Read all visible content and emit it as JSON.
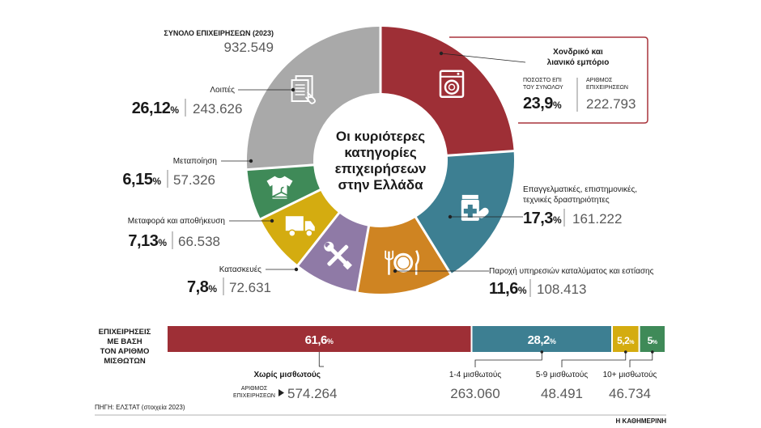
{
  "colors": {
    "background": "#ffffff",
    "text_dark": "#1a1a1a",
    "text_gray": "#5a5a5a",
    "divider": "#8a8a8a",
    "highlight_box": "#a8343b"
  },
  "chart_data": [
    {
      "type": "pie",
      "style": "donut",
      "title": "Οι κυριότερες κατηγορίες επιχειρήσεων στην Ελλάδα",
      "title_lines": [
        "Οι κυριότερες",
        "κατηγορίες",
        "επιχειρήσεων",
        "στην Ελλάδα"
      ],
      "total_label": "ΣΥΝΟΛΟ ΕΠΙΧΕΙΡΗΣΕΩΝ (2023)",
      "total_value": "932.549",
      "highlight_box": {
        "share_header": [
          "ΠΟΣΟΣΤΟ ΕΠΙ",
          "ΤΟΥ ΣΥΝΟΛΟΥ"
        ],
        "count_header": [
          "ΑΡΙΘΜΟΣ",
          "ΕΠΙΧΕΙΡΗΣΕΩΝ"
        ]
      },
      "slices": [
        {
          "label": "Χονδρικό και λιανικό εμπόριο",
          "label_lines": [
            "Χονδρικό και",
            "λιανικό εμπόριο"
          ],
          "percent": 23.9,
          "percent_text": "23,9",
          "count": 222793,
          "count_text": "222.793",
          "color": "#9e2f36",
          "icon": "washing-machine-icon"
        },
        {
          "label": "Επαγγελματικές, επιστημονικές, τεχνικές δραστηριότητες",
          "label_lines": [
            "Επαγγελματικές, επιστημονικές,",
            "τεχνικές δραστηριότητες"
          ],
          "percent": 17.3,
          "percent_text": "17,3",
          "count": 161222,
          "count_text": "161.222",
          "color": "#3d7f92",
          "icon": "medicine-icon"
        },
        {
          "label": "Παροχή υπηρεσιών καταλύματος και εστίασης",
          "label_lines": [
            "Παροχή υπηρεσιών καταλύματος και εστίασης"
          ],
          "percent": 11.6,
          "percent_text": "11,6",
          "count": 108413,
          "count_text": "108.413",
          "color": "#cf8422",
          "icon": "cutlery-plate-icon"
        },
        {
          "label": "Κατασκευές",
          "label_lines": [
            "Κατασκευές"
          ],
          "percent": 7.8,
          "percent_text": "7,8",
          "count": 72631,
          "count_text": "72.631",
          "color": "#8f7aa6",
          "icon": "tools-icon"
        },
        {
          "label": "Μεταφορά και αποθήκευση",
          "label_lines": [
            "Μεταφορά και αποθήκευση"
          ],
          "percent": 7.13,
          "percent_text": "7,13",
          "count": 66538,
          "count_text": "66.538",
          "color": "#d4ac10",
          "icon": "truck-icon"
        },
        {
          "label": "Μεταποίηση",
          "label_lines": [
            "Μεταποίηση"
          ],
          "percent": 6.15,
          "percent_text": "6,15",
          "count": 57326,
          "count_text": "57.326",
          "color": "#3f8a58",
          "icon": "shirt-hanger-icon"
        },
        {
          "label": "Λοιπές",
          "label_lines": [
            "Λοιπές"
          ],
          "percent": 26.12,
          "percent_text": "26,12",
          "count": 243626,
          "count_text": "243.626",
          "color": "#a9a9a9",
          "icon": "documents-icon"
        }
      ]
    },
    {
      "type": "bar",
      "style": "stacked-horizontal",
      "title": "ΕΠΙΧΕΙΡΗΣΕΙΣ ΜΕ ΒΑΣΗ ΤΟΝ ΑΡΙΘΜΟ ΜΙΣΘΩΤΩΝ",
      "title_lines": [
        "ΕΠΙΧΕΙΡΗΣΕΙΣ",
        "ΜΕ ΒΑΣΗ",
        "ΤΟΝ ΑΡΙΘΜΟ",
        "ΜΙΣΘΩΤΩΝ"
      ],
      "count_label": [
        "ΑΡΙΘΜΟΣ",
        "ΕΠΙΧΕΙΡΗΣΕΩΝ"
      ],
      "segments": [
        {
          "category": "Χωρίς μισθωτούς",
          "percent": 61.6,
          "percent_text": "61,6",
          "count_text": "574.264",
          "color": "#9e2f36"
        },
        {
          "category": "1-4 μισθωτούς",
          "percent": 28.2,
          "percent_text": "28,2",
          "count_text": "263.060",
          "color": "#3d7f92"
        },
        {
          "category": "5-9 μισθωτούς",
          "percent": 5.2,
          "percent_text": "5,2",
          "count_text": "48.491",
          "color": "#d4ac10"
        },
        {
          "category": "10+ μισθωτούς",
          "percent": 5,
          "percent_text": "5",
          "count_text": "46.734",
          "color": "#3f8a58"
        }
      ]
    }
  ],
  "footer": {
    "source": "ΠΗΓΗ: ΕΛΣΤΑΤ (στοιχεία 2023)",
    "brand": "Η ΚΑΘΗΜΕΡΙΝΗ"
  }
}
